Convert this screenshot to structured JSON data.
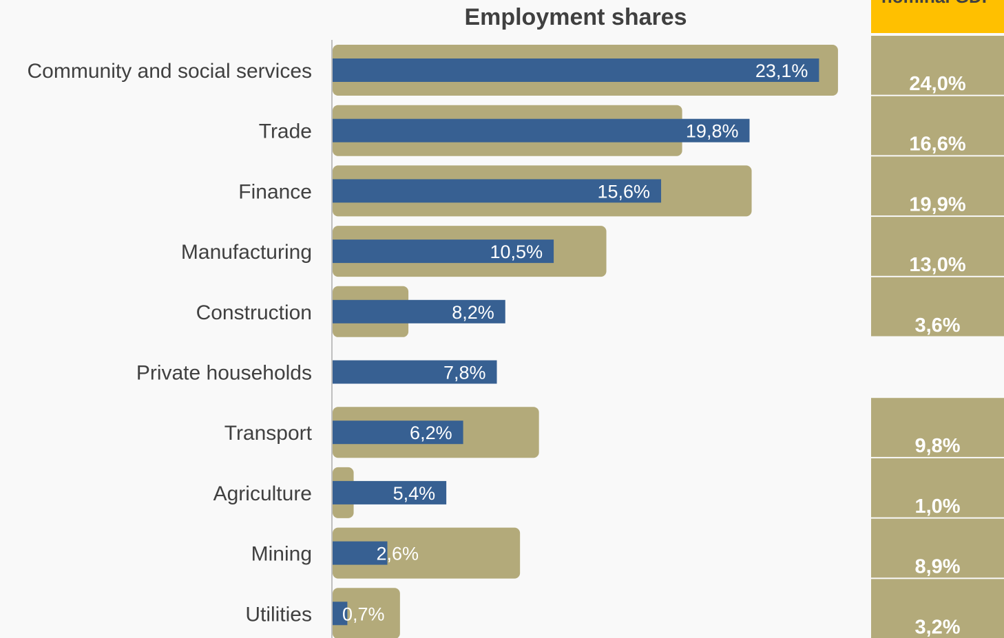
{
  "colors": {
    "background": "#f9f9f9",
    "gdp_bar": "#b3aa7a",
    "employment_bar": "#376092",
    "header_accent": "#ffc000",
    "axis": "#bfbfbf",
    "label_text": "#404040"
  },
  "chart_data": {
    "type": "bar",
    "orientation": "horizontal",
    "title": "Employment shares",
    "gdp_column_header": "nominal GDP",
    "categories": [
      "Community and social services",
      "Trade",
      "Finance",
      "Manufacturing",
      "Construction",
      "Private households",
      "Transport",
      "Agriculture",
      "Mining",
      "Utilities"
    ],
    "series": [
      {
        "values": [
          24.0,
          16.6,
          19.9,
          13.0,
          3.6,
          null,
          9.8,
          1.0,
          8.9,
          3.2
        ],
        "value_labels": [
          "24,0%",
          "16,6%",
          "19,9%",
          "13,0%",
          "3,6%",
          "",
          "9,8%",
          "1,0%",
          "8,9%",
          "3,2%"
        ],
        "color": "#b3aa7a"
      },
      {
        "values": [
          23.1,
          19.8,
          15.6,
          10.5,
          8.2,
          7.8,
          6.2,
          5.4,
          2.6,
          0.7
        ],
        "value_labels": [
          "23,1%",
          "19,8%",
          "15,6%",
          "10,5%",
          "8,2%",
          "7,8%",
          "6,2%",
          "5,4%",
          "2,6%",
          "0,7%"
        ],
        "color": "#376092"
      }
    ],
    "xlim": [
      0,
      24
    ],
    "grid": false,
    "legend": "none"
  }
}
